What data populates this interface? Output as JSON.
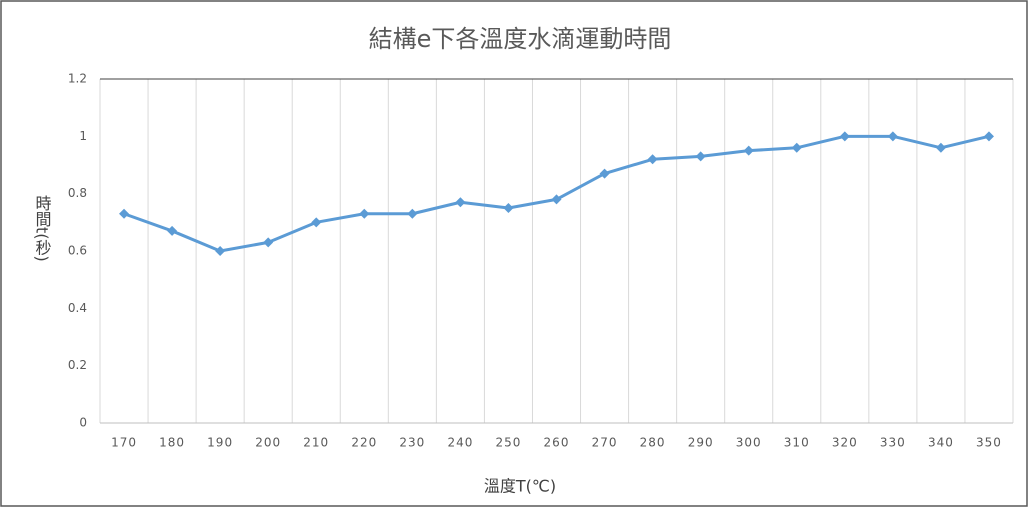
{
  "chart_data": {
    "type": "line",
    "title": "結構e下各溫度水滴運動時間",
    "x_label": "溫度T(℃)",
    "y_label": "時間t(秒)",
    "categories": [
      "170",
      "180",
      "190",
      "200",
      "210",
      "220",
      "230",
      "240",
      "250",
      "260",
      "270",
      "280",
      "290",
      "300",
      "310",
      "320",
      "330",
      "340",
      "350"
    ],
    "values": [
      0.73,
      0.67,
      0.6,
      0.63,
      0.7,
      0.73,
      0.73,
      0.77,
      0.75,
      0.78,
      0.87,
      0.92,
      0.93,
      0.95,
      0.96,
      1.0,
      1.0,
      0.96,
      1.0
    ],
    "color": "#5b9bd5",
    "ylim": [
      0,
      1.2
    ],
    "yticks": [
      0,
      0.2,
      0.4,
      0.6,
      0.8,
      1,
      1.2
    ],
    "marker": "diamond"
  }
}
